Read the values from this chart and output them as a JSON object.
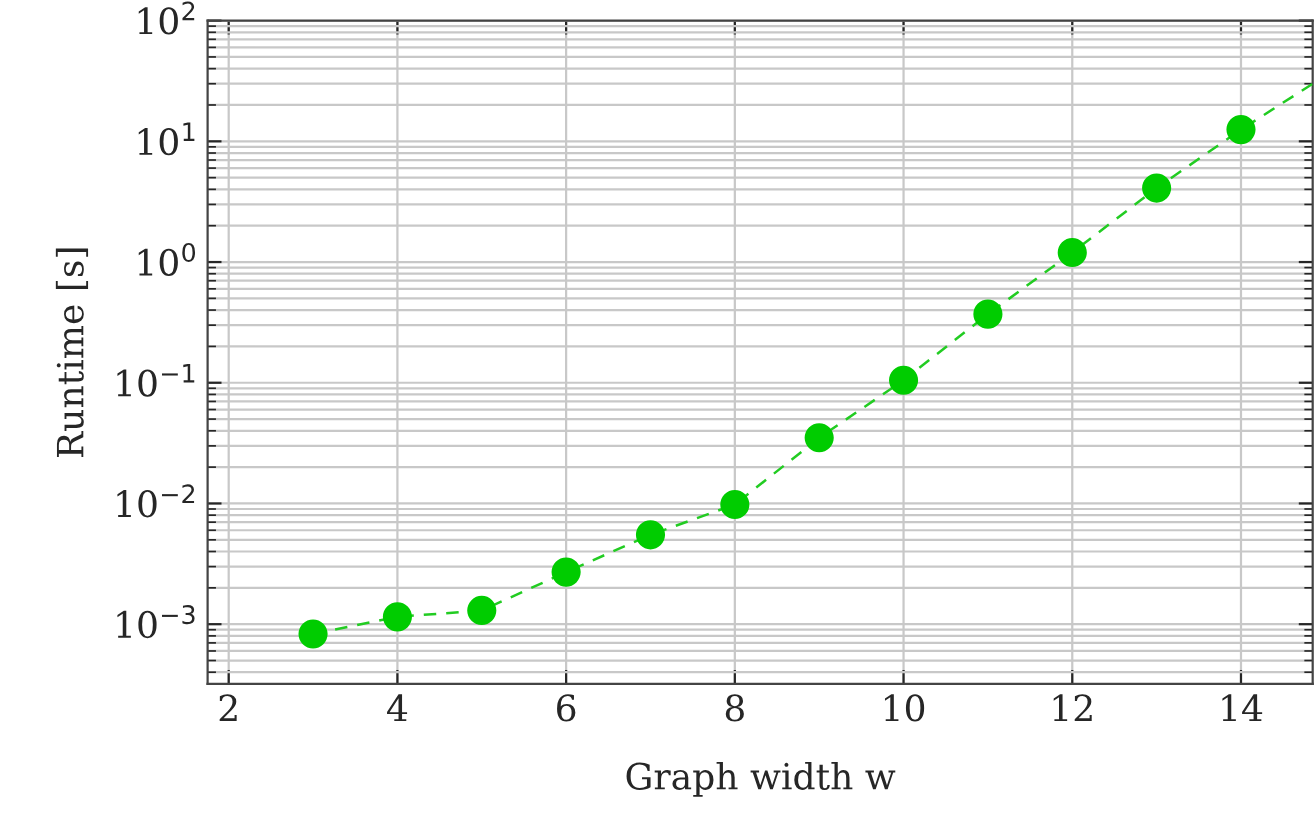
{
  "chart_data": {
    "type": "line",
    "xlabel": "Graph width w",
    "ylabel": "Runtime [s]",
    "log": "y",
    "grid": true,
    "marker": "circle",
    "xlim": [
      1.75,
      14.85
    ],
    "xticks": [
      2,
      4,
      6,
      8,
      10,
      12,
      14
    ],
    "ylim": [
      0.00032,
      100
    ],
    "yticks": [
      {
        "value": 0.001,
        "label": "10$^{−3}$"
      },
      {
        "value": 0.01,
        "label": "10$^{−2}$"
      },
      {
        "value": 0.1,
        "label": "10$^{−1}$"
      },
      {
        "value": 1,
        "label": "10$^{0}$"
      },
      {
        "value": 10,
        "label": "10$^{1}$"
      },
      {
        "value": 100,
        "label": "10$^{2}$"
      }
    ],
    "series": [
      {
        "line_style": "dashed",
        "marker": "none",
        "color": "#22cc22",
        "x": [
          3,
          4,
          5,
          6,
          7,
          8,
          9,
          10,
          11,
          12,
          13,
          14,
          14.85
        ],
        "values": [
          0.00083,
          0.00115,
          0.0013,
          0.0027,
          0.0055,
          0.0098,
          0.035,
          0.105,
          0.37,
          1.2,
          4.1,
          12.5,
          30
        ]
      },
      {
        "type": "scatter",
        "color": "#00cc00",
        "x": [
          3,
          4,
          5,
          6,
          7,
          8,
          9,
          10,
          11,
          12,
          13,
          14
        ],
        "values": [
          0.00083,
          0.00115,
          0.0013,
          0.0027,
          0.0055,
          0.0098,
          0.035,
          0.105,
          0.37,
          1.2,
          4.1,
          12.5
        ]
      }
    ]
  }
}
